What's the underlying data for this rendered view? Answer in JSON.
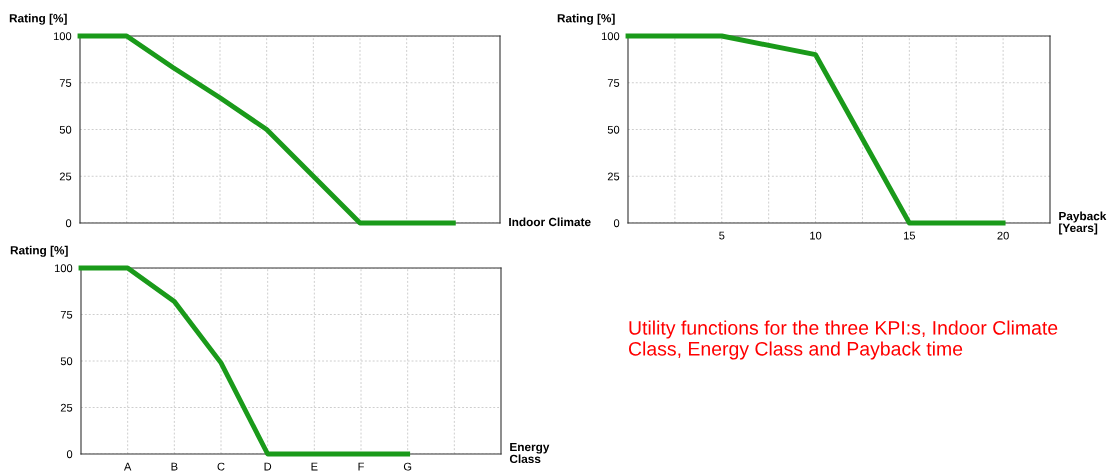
{
  "chart_data": [
    {
      "type": "line",
      "ylabel": "Rating [%]",
      "xlabel": "Indoor Climate",
      "categories": [
        null,
        null,
        null,
        null,
        null,
        null,
        null,
        null,
        null
      ],
      "series": [
        {
          "color": "#1a9a1a",
          "values": [
            100,
            100,
            83,
            67,
            50,
            25,
            0,
            0,
            0
          ]
        }
      ],
      "ylim": [
        0,
        100
      ],
      "yticks": [
        0,
        25,
        50,
        75,
        100
      ],
      "tick_labels": "y",
      "grid": true,
      "marker": "none",
      "line_style": "solid"
    },
    {
      "type": "line",
      "ylabel": "Rating [%]",
      "xlabel": "Payback\n[Years]",
      "x": [
        0,
        5,
        10,
        15,
        20
      ],
      "series": [
        {
          "color": "#1a9a1a",
          "values": [
            100,
            100,
            90,
            0,
            0
          ]
        }
      ],
      "xlim": [
        0,
        22.5
      ],
      "xticks": [
        {
          "value": 2.5,
          "label": null
        },
        5,
        {
          "value": 7.5,
          "label": null
        },
        10,
        {
          "value": 12.5,
          "label": null
        },
        15,
        {
          "value": 17.5,
          "label": null
        },
        20
      ],
      "ylim": [
        0,
        100
      ],
      "yticks": [
        0,
        25,
        50,
        75,
        100
      ],
      "grid": true,
      "marker": "none",
      "line_style": "solid"
    },
    {
      "type": "line",
      "ylabel": "Rating [%]",
      "xlabel": "Energy\nClass",
      "categories": [
        null,
        "A",
        "B",
        "C",
        "D",
        "E",
        "F",
        "G",
        null
      ],
      "series": [
        {
          "color": "#1a9a1a",
          "values": [
            100,
            100,
            82,
            49,
            0,
            0,
            0,
            0,
            null
          ]
        }
      ],
      "ylim": [
        0,
        100
      ],
      "yticks": [
        0,
        25,
        50,
        75,
        100
      ],
      "grid": true,
      "marker": "none",
      "line_style": "solid"
    },
    {
      "type": "other",
      "annotations": [
        "Utility functions for the three KPI:s, Indoor Climate Class, Energy Class and Payback time"
      ]
    }
  ]
}
